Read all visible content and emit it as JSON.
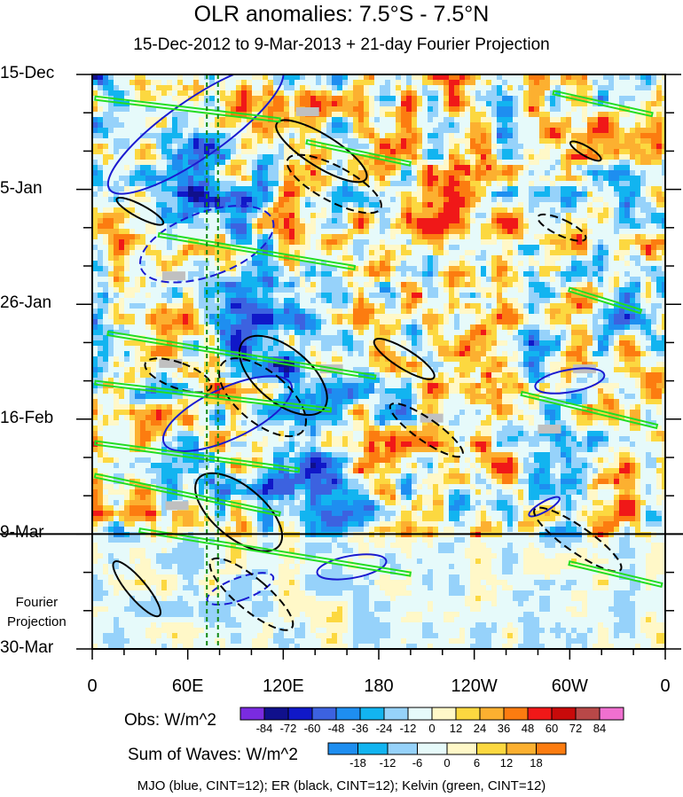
{
  "chart_data": {
    "type": "heatmap",
    "title": "OLR anomalies: 7.5°S - 7.5°N",
    "subtitle": "15-Dec-2012 to 9-Mar-2013 + 21-day Fourier Projection",
    "y_ticks": [
      "15-Dec",
      "5-Jan",
      "26-Jan",
      "16-Feb",
      "9-Mar",
      "30-Mar"
    ],
    "x_ticks": [
      "0",
      "60E",
      "120E",
      "180",
      "120W",
      "60W",
      "0"
    ],
    "x_range_degE": [
      0,
      360
    ],
    "y_range_days_since_start": [
      0,
      105
    ],
    "observation_end": "9-Mar",
    "projection_label": [
      "Fourier",
      "Projection"
    ],
    "obs_colorbar": {
      "label": "Obs: W/m^2",
      "levels": [
        "-84",
        "-72",
        "-60",
        "-48",
        "-36",
        "-24",
        "-12",
        "0",
        "12",
        "24",
        "36",
        "48",
        "60",
        "72",
        "84"
      ],
      "colors": [
        "#7a2be0",
        "#10108c",
        "#1018c8",
        "#3c62e0",
        "#1e8ef0",
        "#12b4f0",
        "#96d2fa",
        "#e6fafa",
        "#fff8c8",
        "#fcd840",
        "#fcb030",
        "#fc7c10",
        "#f01818",
        "#c80a0a",
        "#b84848",
        "#f070d0"
      ]
    },
    "waves_colorbar": {
      "label": "Sum of Waves: W/m^2",
      "levels": [
        "-18",
        "-12",
        "-6",
        "0",
        "6",
        "12",
        "18"
      ],
      "colors": [
        "#1e8ef0",
        "#12b4f0",
        "#96d2fa",
        "#e6fafa",
        "#fff8c8",
        "#fcd840",
        "#fcb030",
        "#fc7c10"
      ]
    },
    "footer": "MJO (blue, CINT=12); ER (black, CINT=12); Kelvin (green, CINT=12)",
    "mjo_contours": [
      {
        "cx": 65,
        "cy": 10,
        "rx": 18,
        "ry": 6,
        "angle": 55,
        "sign": "neg"
      },
      {
        "cx": 72,
        "cy": 31,
        "rx": 20,
        "ry": 4,
        "angle": 70,
        "sign": "pos"
      },
      {
        "cx": 85,
        "cy": 62,
        "rx": 16,
        "ry": 4,
        "angle": 65,
        "sign": "neg"
      },
      {
        "cx": 93,
        "cy": 94,
        "rx": 7,
        "ry": 2,
        "angle": 70,
        "sign": "pos"
      },
      {
        "cx": 300,
        "cy": 56,
        "rx": 7,
        "ry": 2,
        "angle": 80,
        "sign": "neg"
      },
      {
        "cx": 163,
        "cy": 90,
        "rx": 7,
        "ry": 2,
        "angle": 80,
        "sign": "neg"
      },
      {
        "cx": 284,
        "cy": 79,
        "rx": 3,
        "ry": 1,
        "angle": 60,
        "sign": "neg"
      }
    ],
    "er_contours": [
      {
        "cx": 144,
        "cy": 14,
        "rx": 10,
        "ry": 3,
        "angle": -58,
        "sign": "neg"
      },
      {
        "cx": 152,
        "cy": 20,
        "rx": 11,
        "ry": 3,
        "angle": -62,
        "sign": "pos"
      },
      {
        "cx": 30,
        "cy": 25,
        "rx": 4,
        "ry": 1.5,
        "angle": -62,
        "sign": "neg"
      },
      {
        "cx": 120,
        "cy": 55,
        "rx": 17,
        "ry": 3,
        "angle": -50,
        "sign": "neg"
      },
      {
        "cx": 107,
        "cy": 59,
        "rx": 16,
        "ry": 3,
        "angle": -50,
        "sign": "pos"
      },
      {
        "cx": 92,
        "cy": 80,
        "rx": 16,
        "ry": 3,
        "angle": -50,
        "sign": "neg"
      },
      {
        "cx": 196,
        "cy": 52,
        "rx": 6,
        "ry": 2,
        "angle": -58,
        "sign": "neg"
      },
      {
        "cx": 210,
        "cy": 65,
        "rx": 7,
        "ry": 2.5,
        "angle": -55,
        "sign": "pos"
      },
      {
        "cx": 295,
        "cy": 28,
        "rx": 5,
        "ry": 1.5,
        "angle": -65,
        "sign": "pos"
      },
      {
        "cx": 310,
        "cy": 14,
        "rx": 3,
        "ry": 1,
        "angle": -60,
        "sign": "neg"
      },
      {
        "cx": 305,
        "cy": 85,
        "rx": 8,
        "ry": 3,
        "angle": -55,
        "sign": "pos"
      },
      {
        "cx": 28,
        "cy": 94,
        "rx": 6,
        "ry": 2,
        "angle": -40,
        "sign": "neg"
      },
      {
        "cx": 54,
        "cy": 55,
        "rx": 8,
        "ry": 2,
        "angle": -70,
        "sign": "pos"
      },
      {
        "cx": 100,
        "cy": 95,
        "rx": 10,
        "ry": 3,
        "angle": -50,
        "sign": "pos"
      }
    ],
    "kelvin_contours": [
      {
        "x1": 2,
        "y1": 4,
        "x2": 118,
        "y2": 8
      },
      {
        "x1": 42,
        "y1": 29,
        "x2": 165,
        "y2": 35
      },
      {
        "x1": 10,
        "y1": 47,
        "x2": 178,
        "y2": 55
      },
      {
        "x1": 2,
        "y1": 56,
        "x2": 150,
        "y2": 61
      },
      {
        "x1": 2,
        "y1": 67,
        "x2": 130,
        "y2": 72
      },
      {
        "x1": 2,
        "y1": 73,
        "x2": 118,
        "y2": 80
      },
      {
        "x1": 30,
        "y1": 83,
        "x2": 200,
        "y2": 91
      },
      {
        "x1": 290,
        "y1": 3,
        "x2": 352,
        "y2": 7
      },
      {
        "x1": 300,
        "y1": 39,
        "x2": 345,
        "y2": 43
      },
      {
        "x1": 270,
        "y1": 58,
        "x2": 355,
        "y2": 64
      },
      {
        "x1": 300,
        "y1": 89,
        "x2": 358,
        "y2": 93
      },
      {
        "x1": 135,
        "y1": 12,
        "x2": 200,
        "y2": 16
      }
    ],
    "reference_lines_degE": [
      72,
      79
    ]
  }
}
